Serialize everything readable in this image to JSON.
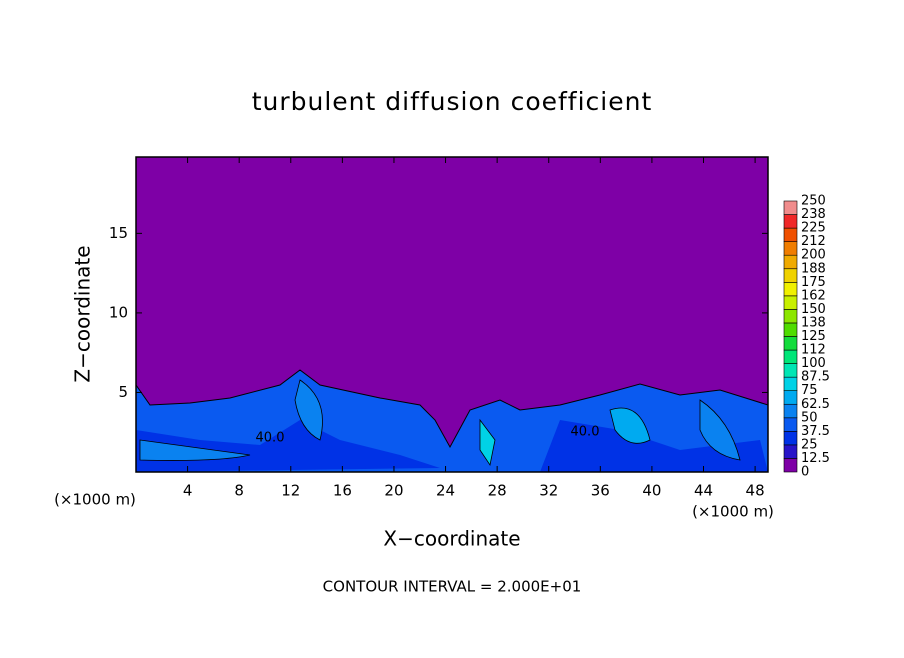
{
  "chart_data": {
    "type": "contour",
    "title": "turbulent diffusion coefficient",
    "x_label": "X−coordinate",
    "y_label": "Z−coordinate",
    "x_unit": "(×1000 m)",
    "xlim": [
      0,
      49
    ],
    "xticks": [
      4,
      8,
      12,
      16,
      20,
      24,
      28,
      32,
      36,
      40,
      44,
      48
    ],
    "ylim": [
      0,
      19.8
    ],
    "yticks": [
      5,
      10,
      15
    ],
    "contour_labels": [
      "40.0",
      "40.0"
    ],
    "footer": "CONTOUR INTERVAL = 2.000E+01",
    "colorbar": {
      "levels": [
        0,
        12.5,
        25,
        37.5,
        50,
        62.5,
        75,
        87.5,
        100,
        112,
        125,
        138,
        150,
        162,
        175,
        188,
        200,
        212,
        225,
        238,
        250
      ],
      "colors": [
        "#7e00a6",
        "#2814c8",
        "#0032e6",
        "#0a5af0",
        "#0a82f0",
        "#00aaf0",
        "#00d2e6",
        "#00e6b4",
        "#00e678",
        "#14dc3c",
        "#50dc00",
        "#8ce600",
        "#c8f000",
        "#f0f000",
        "#f0d200",
        "#f0aa00",
        "#f07d00",
        "#f05000",
        "#f02828",
        "#f08c8c"
      ]
    }
  }
}
